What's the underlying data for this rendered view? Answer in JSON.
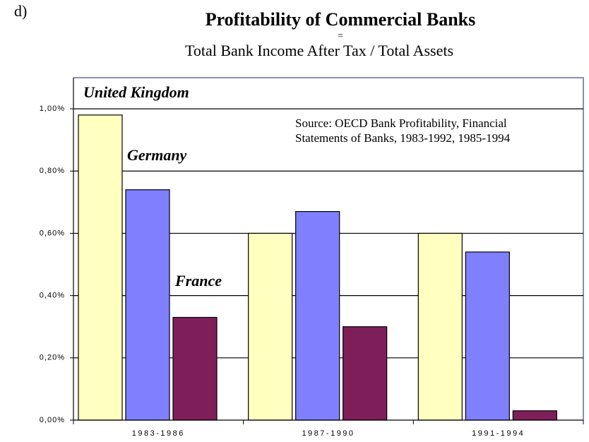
{
  "chart_data": {
    "type": "bar",
    "panel": "d)",
    "title": "Profitability of Commercial Banks",
    "title_sep": "=",
    "subtitle": "Total Bank Income After Tax / Total Assets",
    "annotation": [
      "Source: OECD Bank Profitability, Financial",
      "Statements of Banks, 1983-1992, 1985-1994"
    ],
    "categories": [
      "1983-1986",
      "1987-1990",
      "1991-1994"
    ],
    "series": [
      {
        "name": "United Kingdom",
        "color": "#ffffc0",
        "values": [
          0.98,
          0.6,
          0.6
        ]
      },
      {
        "name": "Germany",
        "color": "#8080ff",
        "values": [
          0.74,
          0.67,
          0.54
        ]
      },
      {
        "name": "France",
        "color": "#7f1f5a",
        "values": [
          0.33,
          0.3,
          0.03
        ]
      }
    ],
    "ylim": [
      0,
      1.1
    ],
    "yticks": [
      {
        "value": 0,
        "label": "0,00%"
      },
      {
        "value": 0.2,
        "label": "0,20%"
      },
      {
        "value": 0.4,
        "label": "0,40%"
      },
      {
        "value": 0.6,
        "label": "0,60%"
      },
      {
        "value": 0.8,
        "label": "0,80%"
      },
      {
        "value": 1,
        "label": "1,00%"
      }
    ],
    "grid": true
  }
}
